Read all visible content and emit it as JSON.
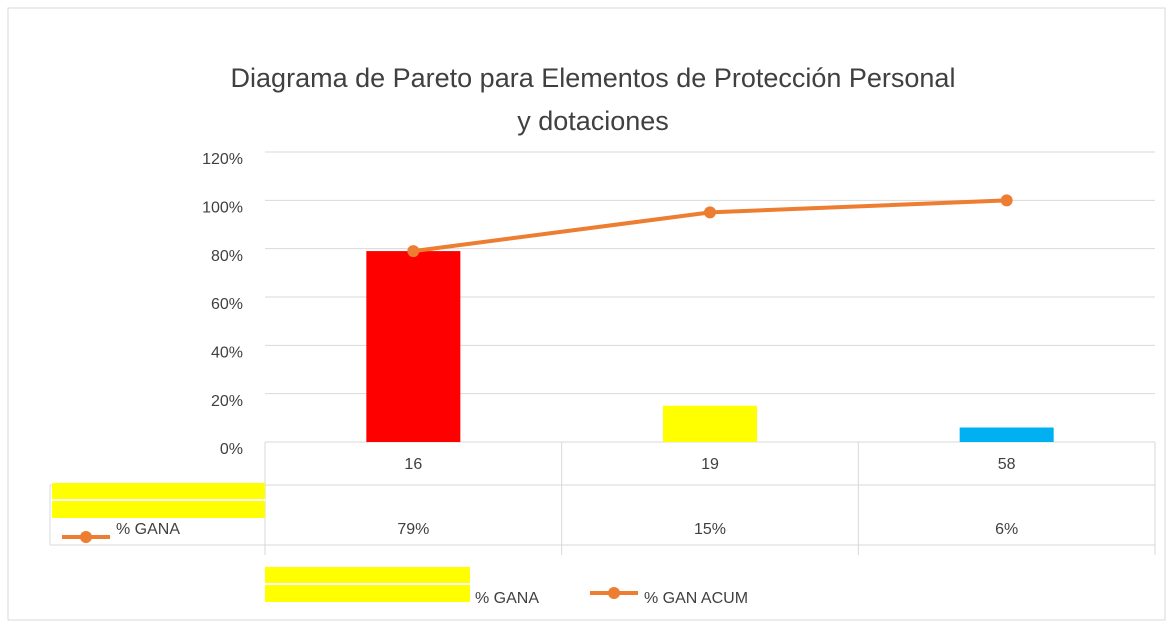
{
  "chart_data": {
    "type": "bar",
    "title": "Diagrama de Pareto para Elementos de Protección Personal",
    "subtitle": "y dotaciones",
    "categories": [
      "16",
      "19",
      "58"
    ],
    "series": [
      {
        "name": "% GANA",
        "type": "bar",
        "colors": [
          "#ff0000",
          "#ffff00",
          "#00b0f0"
        ],
        "legend_color": "#ffff00",
        "values": [
          79,
          15,
          6
        ],
        "value_labels": [
          "79%",
          "15%",
          "6%"
        ]
      },
      {
        "name": "% GAN ACUM",
        "type": "line",
        "color": "#ed7d31",
        "values": [
          79,
          95,
          100
        ]
      }
    ],
    "ylim": [
      0,
      120
    ],
    "yticks": [
      {
        "value": 0,
        "label": "0%"
      },
      {
        "value": 20,
        "label": "20%"
      },
      {
        "value": 40,
        "label": "40%"
      },
      {
        "value": 60,
        "label": "60%"
      },
      {
        "value": 80,
        "label": "80%"
      },
      {
        "value": 100,
        "label": "100%"
      },
      {
        "value": 120,
        "label": "120%"
      }
    ],
    "grid": true,
    "legend": "bottom"
  }
}
